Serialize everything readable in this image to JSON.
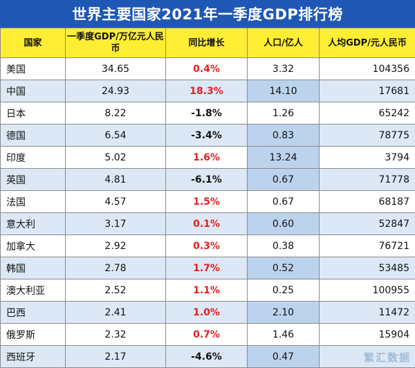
{
  "title": "世界主要国家2021年一季度GDP排行榜",
  "watermark": "繁汇数据",
  "chart_data": {
    "type": "table",
    "columns": [
      "国家",
      "一季度GDP/万亿元人民币",
      "同比增长",
      "人口/亿人",
      "人均GDP/元人民币"
    ],
    "rows": [
      {
        "country": "美国",
        "gdp": "34.65",
        "growth": "0.4%",
        "pop": "3.32",
        "pc": "104356"
      },
      {
        "country": "中国",
        "gdp": "24.93",
        "growth": "18.3%",
        "pop": "14.10",
        "pc": "17681"
      },
      {
        "country": "日本",
        "gdp": "8.22",
        "growth": "-1.8%",
        "pop": "1.26",
        "pc": "65242"
      },
      {
        "country": "德国",
        "gdp": "6.54",
        "growth": "-3.4%",
        "pop": "0.83",
        "pc": "78775"
      },
      {
        "country": "印度",
        "gdp": "5.02",
        "growth": "1.6%",
        "pop": "13.24",
        "pc": "3794"
      },
      {
        "country": "英国",
        "gdp": "4.81",
        "growth": "-6.1%",
        "pop": "0.67",
        "pc": "71778"
      },
      {
        "country": "法国",
        "gdp": "4.57",
        "growth": "1.5%",
        "pop": "0.67",
        "pc": "68187"
      },
      {
        "country": "意大利",
        "gdp": "3.17",
        "growth": "0.1%",
        "pop": "0.60",
        "pc": "52847"
      },
      {
        "country": "加拿大",
        "gdp": "2.92",
        "growth": "0.3%",
        "pop": "0.38",
        "pc": "76721"
      },
      {
        "country": "韩国",
        "gdp": "2.78",
        "growth": "1.7%",
        "pop": "0.52",
        "pc": "53485"
      },
      {
        "country": "澳大利亚",
        "gdp": "2.52",
        "growth": "1.1%",
        "pop": "0.25",
        "pc": "100955"
      },
      {
        "country": "巴西",
        "gdp": "2.41",
        "growth": "1.0%",
        "pop": "2.10",
        "pc": "11472"
      },
      {
        "country": "俄罗斯",
        "gdp": "2.32",
        "growth": "0.7%",
        "pop": "1.46",
        "pc": "15904"
      },
      {
        "country": "西班牙",
        "gdp": "2.17",
        "growth": "-4.6%",
        "pop": "0.47",
        "pc": ""
      }
    ]
  }
}
